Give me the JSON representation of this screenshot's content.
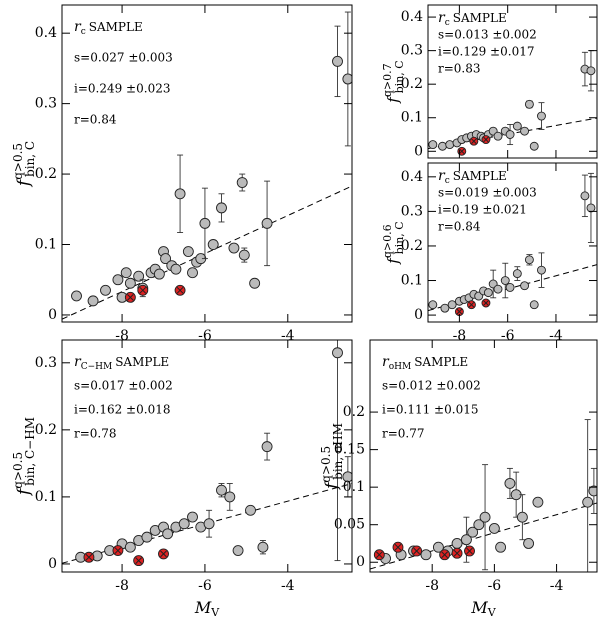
{
  "chart_data": [
    {
      "type": "scatter",
      "ylabel": {
        "main": "f",
        "sup": "q>0.5",
        "sub": "bin, C"
      },
      "annotations": {
        "sample": {
          "main": "r",
          "sub": "c",
          "rest": "SAMPLE"
        },
        "lines": [
          "s=0.027 ±0.003",
          "i=0.249 ±0.023",
          "r=0.84"
        ]
      },
      "xlim": [
        -9.45,
        -2.45
      ],
      "xticks": [
        -8,
        -6,
        -4
      ],
      "xtick_labels": true,
      "ylim": [
        -0.01,
        0.44
      ],
      "yticks": [
        0,
        0.1,
        0.2,
        0.3,
        0.4
      ],
      "fit": {
        "x": [
          -9.45,
          -2.45
        ],
        "y": [
          -0.006,
          0.183
        ]
      },
      "series": [
        {
          "color": "#bbbbbb",
          "x": [
            -9.1,
            -8.7,
            -8.4,
            -8.1,
            -8.0,
            -7.9,
            -7.8,
            -7.6,
            -7.5,
            -7.3,
            -7.2,
            -7.1,
            -7.0,
            -6.95,
            -6.8,
            -6.7,
            -6.6,
            -6.4,
            -6.3,
            -6.2,
            -6.1,
            -6.0,
            -5.8,
            -5.6,
            -5.3,
            -5.1,
            -5.05,
            -4.8,
            -4.5,
            -2.8,
            -2.55
          ],
          "values": [
            0.027,
            0.02,
            0.035,
            0.05,
            0.025,
            0.06,
            0.045,
            0.055,
            0.038,
            0.06,
            0.065,
            0.058,
            0.09,
            0.08,
            0.07,
            0.065,
            0.172,
            0.09,
            0.06,
            0.075,
            0.08,
            0.13,
            0.1,
            0.152,
            0.095,
            0.188,
            0.085,
            0.045,
            0.13,
            0.36,
            0.335
          ],
          "errors": [
            null,
            null,
            null,
            null,
            null,
            null,
            null,
            null,
            0.012,
            null,
            null,
            null,
            null,
            null,
            null,
            null,
            0.055,
            null,
            null,
            null,
            null,
            0.05,
            null,
            0.02,
            null,
            0.012,
            0.01,
            null,
            0.06,
            0.05,
            0.095
          ]
        },
        {
          "color": "#dd2222",
          "x": [
            -7.8,
            -7.5,
            -6.6
          ],
          "values": [
            0.025,
            0.035,
            0.035
          ],
          "errors": [
            null,
            null,
            null
          ]
        }
      ]
    },
    {
      "type": "scatter",
      "ylabel": {
        "main": "f",
        "sup": "q>0.7",
        "sub": "bin, C"
      },
      "annotations": {
        "sample": {
          "main": "r",
          "sub": "c",
          "rest": "SAMPLE"
        },
        "lines": [
          "s=0.013 ±0.002",
          "i=0.129 ±0.017",
          "r=0.83"
        ]
      },
      "xlim": [
        -9.3,
        -2.3
      ],
      "xticks": [
        -8,
        -6,
        -4
      ],
      "xtick_labels": false,
      "ylim": [
        -0.02,
        0.436
      ],
      "yticks": [
        0,
        0.1,
        0.2,
        0.3,
        0.4
      ],
      "fit": {
        "x": [
          -9.3,
          -2.3
        ],
        "y": [
          0.008,
          0.099
        ]
      },
      "series": [
        {
          "color": "#bbbbbb",
          "x": [
            -9.1,
            -8.7,
            -8.4,
            -8.1,
            -7.9,
            -7.7,
            -7.5,
            -7.3,
            -7.1,
            -7.0,
            -6.8,
            -6.6,
            -6.4,
            -6.1,
            -5.9,
            -5.6,
            -5.3,
            -5.1,
            -4.9,
            -4.6,
            -2.8,
            -2.55
          ],
          "values": [
            0.02,
            0.015,
            0.02,
            0.025,
            0.035,
            0.04,
            0.045,
            0.05,
            0.045,
            0.04,
            0.05,
            0.06,
            0.045,
            0.06,
            0.05,
            0.075,
            0.06,
            0.14,
            0.015,
            0.105,
            0.245,
            0.24
          ],
          "errors": [
            null,
            null,
            null,
            null,
            null,
            null,
            null,
            null,
            null,
            null,
            null,
            null,
            null,
            null,
            0.03,
            null,
            null,
            0.01,
            null,
            0.04,
            0.05,
            0.06
          ]
        },
        {
          "color": "#dd2222",
          "x": [
            -7.9,
            -7.4,
            -6.9
          ],
          "values": [
            0.0,
            0.03,
            0.035
          ],
          "errors": [
            null,
            null,
            null
          ]
        }
      ]
    },
    {
      "type": "scatter",
      "ylabel": {
        "main": "f",
        "sup": "q>0.6",
        "sub": "bin, C"
      },
      "annotations": {
        "sample": {
          "main": "r",
          "sub": "c",
          "rest": "SAMPLE"
        },
        "lines": [
          "s=0.019 ±0.003",
          "i=0.19 ±0.021",
          "r=0.84"
        ]
      },
      "xlim": [
        -9.3,
        -2.3
      ],
      "xticks": [
        -8,
        -6,
        -4
      ],
      "xtick_labels": true,
      "ylim": [
        -0.02,
        0.44
      ],
      "yticks": [
        0,
        0.1,
        0.2,
        0.3,
        0.4
      ],
      "fit": {
        "x": [
          -9.3,
          -2.3
        ],
        "y": [
          0.013,
          0.146
        ]
      },
      "series": [
        {
          "color": "#bbbbbb",
          "x": [
            -9.1,
            -8.6,
            -8.3,
            -8.0,
            -7.8,
            -7.6,
            -7.4,
            -7.2,
            -7.0,
            -6.8,
            -6.6,
            -6.4,
            -6.1,
            -5.9,
            -5.6,
            -5.3,
            -5.1,
            -4.9,
            -4.6,
            -2.8,
            -2.55
          ],
          "values": [
            0.03,
            0.02,
            0.03,
            0.04,
            0.045,
            0.05,
            0.06,
            0.055,
            0.07,
            0.065,
            0.09,
            0.075,
            0.1,
            0.08,
            0.12,
            0.085,
            0.16,
            0.03,
            0.13,
            0.345,
            0.31
          ],
          "errors": [
            null,
            null,
            null,
            null,
            null,
            null,
            null,
            null,
            null,
            null,
            0.04,
            null,
            0.05,
            null,
            0.02,
            null,
            0.015,
            null,
            0.05,
            0.06,
            0.1
          ]
        },
        {
          "color": "#dd2222",
          "x": [
            -8.0,
            -7.5,
            -6.9
          ],
          "values": [
            0.01,
            0.03,
            0.035
          ],
          "errors": [
            null,
            null,
            null
          ]
        }
      ]
    },
    {
      "type": "scatter",
      "ylabel": {
        "main": "f",
        "sup": "q>0.5",
        "sub": "bin, C−HM"
      },
      "xlabel": {
        "main": "M",
        "sub": "V"
      },
      "annotations": {
        "sample": {
          "main": "r",
          "sub": "C−HM",
          "rest": "SAMPLE"
        },
        "lines": [
          "s=0.017 ±0.002",
          "i=0.162 ±0.018",
          "r=0.78"
        ]
      },
      "xlim": [
        -9.45,
        -2.45
      ],
      "xticks": [
        -8,
        -6,
        -4
      ],
      "xtick_labels": true,
      "ylim": [
        -0.012,
        0.334
      ],
      "yticks": [
        0,
        0.1,
        0.2,
        0.3
      ],
      "fit": {
        "x": [
          -9.45,
          -2.45
        ],
        "y": [
          0.001,
          0.12
        ]
      },
      "series": [
        {
          "color": "#bbbbbb",
          "x": [
            -9.0,
            -8.6,
            -8.3,
            -8.0,
            -7.8,
            -7.6,
            -7.4,
            -7.2,
            -7.0,
            -6.9,
            -6.7,
            -6.5,
            -6.3,
            -6.1,
            -5.9,
            -5.6,
            -5.4,
            -5.2,
            -4.9,
            -4.6,
            -4.5,
            -2.8,
            -2.55
          ],
          "values": [
            0.01,
            0.012,
            0.02,
            0.03,
            0.025,
            0.035,
            0.04,
            0.05,
            0.055,
            0.045,
            0.055,
            0.06,
            0.07,
            0.055,
            0.06,
            0.11,
            0.1,
            0.02,
            0.08,
            0.025,
            0.175,
            0.315,
            0.13
          ],
          "errors": [
            null,
            null,
            null,
            null,
            null,
            null,
            null,
            null,
            null,
            null,
            null,
            null,
            null,
            null,
            0.02,
            0.01,
            0.02,
            null,
            null,
            0.01,
            0.02,
            0.31,
            0.03
          ]
        },
        {
          "color": "#dd2222",
          "x": [
            -8.8,
            -8.1,
            -7.6,
            -7.0
          ],
          "values": [
            0.01,
            0.02,
            0.005,
            0.015
          ],
          "errors": [
            null,
            null,
            null,
            null
          ]
        }
      ]
    },
    {
      "type": "scatter",
      "ylabel": {
        "main": "f",
        "sup": "q>0.5",
        "sub": "bin, oHM"
      },
      "xlabel": {
        "main": "M",
        "sub": "V"
      },
      "annotations": {
        "sample": {
          "main": "r",
          "sub": "oHM",
          "rest": "SAMPLE"
        },
        "lines": [
          "s=0.012 ±0.002",
          "i=0.111 ±0.015",
          "r=0.77"
        ]
      },
      "xlim": [
        -10.0,
        -2.7
      ],
      "xticks": [
        -8,
        -6,
        -4
      ],
      "xtick_labels": true,
      "ylim": [
        -0.013,
        0.296
      ],
      "yticks": [
        0,
        0.05,
        0.1,
        0.15,
        0.2
      ],
      "fit": {
        "x": [
          -10.0,
          -2.7
        ],
        "y": [
          -0.009,
          0.079
        ]
      },
      "series": [
        {
          "color": "#bbbbbb",
          "x": [
            -9.5,
            -9.0,
            -8.6,
            -8.2,
            -7.8,
            -7.5,
            -7.2,
            -6.9,
            -6.7,
            -6.5,
            -6.3,
            -6.0,
            -5.8,
            -5.5,
            -5.3,
            -5.1,
            -4.9,
            -4.6,
            -3.0,
            -2.8
          ],
          "values": [
            0.005,
            0.01,
            0.015,
            0.01,
            0.02,
            0.015,
            0.025,
            0.03,
            0.04,
            0.05,
            0.06,
            0.045,
            0.02,
            0.105,
            0.09,
            0.06,
            0.025,
            0.08,
            0.08,
            0.095
          ],
          "errors": [
            null,
            null,
            null,
            null,
            null,
            null,
            null,
            0.03,
            null,
            null,
            0.07,
            null,
            null,
            0.02,
            0.03,
            0.03,
            null,
            null,
            0.11,
            0.03
          ]
        },
        {
          "color": "#dd2222",
          "x": [
            -9.7,
            -9.1,
            -8.5,
            -7.6,
            -7.2,
            -6.8
          ],
          "values": [
            0.01,
            0.02,
            0.015,
            0.01,
            0.012,
            0.015
          ],
          "errors": [
            null,
            null,
            null,
            null,
            null,
            null
          ]
        }
      ]
    }
  ]
}
